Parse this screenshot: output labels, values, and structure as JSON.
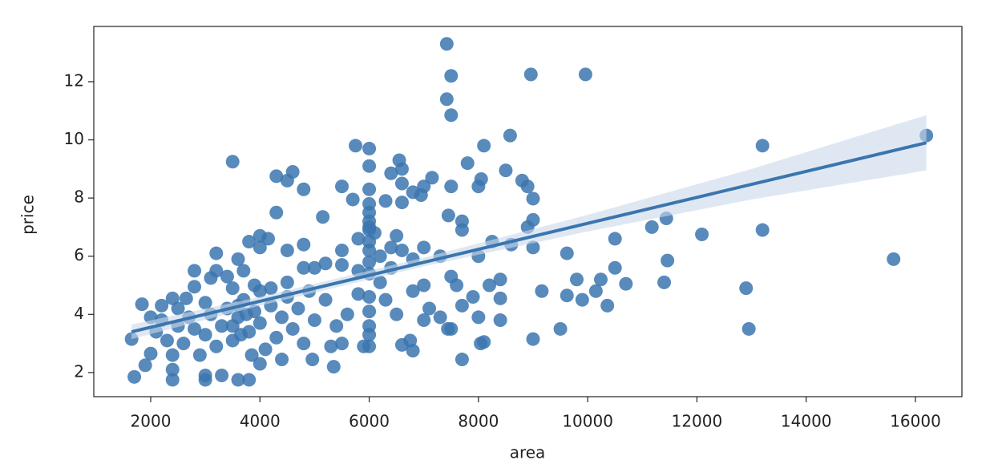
{
  "chart_data": {
    "type": "scatter",
    "xlabel": "area",
    "ylabel": "price",
    "color": "#3b75af",
    "grid": false,
    "xlim": [
      958,
      16851
    ],
    "ylim": [
      1.17,
      13.9
    ],
    "xticks": [
      2000,
      4000,
      6000,
      8000,
      10000,
      12000,
      14000,
      16000
    ],
    "yticks": [
      2,
      4,
      6,
      8,
      10,
      12
    ],
    "x": [
      7420,
      7500,
      8960,
      9960,
      7420,
      7500,
      8580,
      16200,
      13200,
      8100,
      5750,
      6000,
      3500,
      6550,
      7800,
      6000,
      6600,
      8500,
      4600,
      6400,
      4300,
      7150,
      8050,
      8800,
      4500,
      6600,
      8900,
      5500,
      7000,
      7500,
      4800,
      6000,
      6800,
      6950,
      8000,
      9000,
      5700,
      6300,
      6600,
      6000,
      4300,
      5150,
      7450,
      11440,
      9000,
      7700,
      8900,
      11175,
      13200,
      7700,
      6000,
      6100,
      12090,
      4000,
      4150,
      6500,
      5800,
      10500,
      3800,
      8250,
      8600,
      4800,
      4000,
      9000,
      5500,
      7000,
      4500,
      3200,
      9620,
      15600,
      11460,
      8000,
      7300,
      6200,
      3600,
      10500,
      8400,
      9800,
      10240,
      10700,
      11400,
      12900,
      10150,
      9160,
      9620,
      9900,
      10360,
      7900,
      7700,
      8400,
      8000,
      8400,
      9500,
      12950,
      9000,
      8040,
      8100,
      7700,
      6800,
      6750,
      6600,
      7300,
      7440,
      7500,
      7000,
      7100,
      7600,
      7500,
      8200,
      7000,
      6800,
      6500,
      6300,
      6000,
      6000,
      5900,
      6000,
      5500,
      5300,
      4960,
      5350,
      4400,
      4000,
      3800,
      3600,
      3300,
      3000,
      3000,
      2400,
      2400,
      1700,
      1650,
      1900,
      2000,
      2400,
      1840,
      2100,
      2200,
      2200,
      2500,
      2400,
      2650,
      2800,
      2800,
      3100,
      3200,
      3400,
      3500,
      3700,
      3900,
      4000,
      4200,
      4500,
      4800,
      5000,
      5200,
      5500,
      5800,
      6000,
      6200,
      6400,
      6600,
      6800,
      6400,
      2600,
      2800,
      2900,
      3000,
      3100,
      3200,
      3300,
      3400,
      3500,
      3600,
      3700,
      3800,
      3900,
      4000,
      4100,
      4200,
      4300,
      4400,
      4500,
      4600,
      4700,
      4800,
      4900,
      5000,
      5200,
      5400,
      5600,
      5800,
      3000,
      3500,
      3600,
      3650,
      3750,
      3850,
      2500,
      2700,
      2300,
      2000,
      6000,
      6000,
      6000,
      6000,
      6000,
      6000,
      6000,
      6000
    ],
    "values": [
      13.3,
      12.2,
      12.25,
      12.25,
      11.4,
      10.85,
      10.15,
      10.15,
      9.8,
      9.8,
      9.8,
      9.7,
      9.25,
      9.3,
      9.2,
      9.1,
      9.0,
      8.95,
      8.9,
      8.85,
      8.75,
      8.7,
      8.65,
      8.6,
      8.6,
      8.5,
      8.4,
      8.4,
      8.4,
      8.4,
      8.3,
      8.3,
      8.2,
      8.1,
      8.4,
      7.98,
      7.95,
      7.9,
      7.85,
      7.8,
      7.5,
      7.35,
      7.4,
      7.3,
      7.25,
      7.2,
      7.0,
      7.0,
      6.9,
      6.9,
      6.9,
      6.8,
      6.75,
      6.7,
      6.6,
      6.7,
      6.6,
      6.6,
      6.5,
      6.5,
      6.4,
      6.4,
      6.3,
      6.3,
      6.2,
      6.3,
      6.2,
      6.1,
      6.1,
      5.9,
      5.85,
      6.0,
      6.0,
      6.0,
      5.9,
      5.6,
      5.2,
      5.2,
      5.2,
      5.05,
      5.1,
      4.9,
      4.8,
      4.8,
      4.65,
      4.5,
      4.3,
      4.6,
      4.3,
      4.55,
      3.9,
      3.8,
      3.5,
      3.5,
      3.15,
      3.0,
      3.05,
      2.45,
      2.75,
      3.1,
      2.95,
      3.9,
      3.5,
      3.5,
      3.8,
      4.2,
      5.0,
      5.3,
      5.0,
      5.0,
      4.8,
      4.0,
      4.5,
      4.1,
      3.3,
      2.9,
      2.9,
      3.0,
      2.9,
      2.45,
      2.2,
      2.45,
      2.3,
      1.75,
      1.75,
      1.9,
      1.75,
      1.9,
      1.75,
      2.1,
      1.85,
      3.15,
      2.25,
      2.65,
      2.6,
      4.35,
      3.4,
      3.8,
      4.3,
      4.2,
      4.55,
      4.55,
      5.5,
      4.95,
      5.25,
      5.5,
      5.3,
      4.9,
      5.5,
      5.0,
      4.8,
      4.9,
      5.1,
      5.6,
      5.6,
      5.75,
      5.7,
      5.5,
      5.4,
      5.1,
      5.6,
      6.2,
      5.9,
      6.3,
      3.0,
      3.5,
      2.6,
      3.3,
      4.0,
      2.9,
      3.6,
      4.2,
      3.1,
      3.9,
      4.5,
      3.4,
      4.1,
      3.7,
      2.8,
      4.3,
      3.2,
      3.9,
      4.6,
      3.5,
      4.2,
      3.0,
      4.8,
      3.8,
      4.5,
      3.6,
      4.0,
      4.7,
      4.4,
      3.6,
      4.3,
      3.3,
      4.0,
      2.6,
      3.6,
      3.9,
      3.1,
      3.9,
      7.5,
      7.2,
      7.0,
      6.5,
      6.2,
      5.8,
      4.6,
      3.6
    ],
    "regression": {
      "color": "#3b75af",
      "band_color": "#c9d8ea",
      "x": [
        1650,
        4000,
        7000,
        10000,
        13000,
        16200
      ],
      "values": [
        3.4,
        4.45,
        5.79,
        7.13,
        8.47,
        9.9
      ],
      "ci_lower": [
        3.15,
        4.3,
        5.65,
        6.85,
        7.95,
        8.95
      ],
      "ci_upper": [
        3.65,
        4.6,
        5.95,
        7.42,
        9.0,
        10.85
      ]
    }
  }
}
